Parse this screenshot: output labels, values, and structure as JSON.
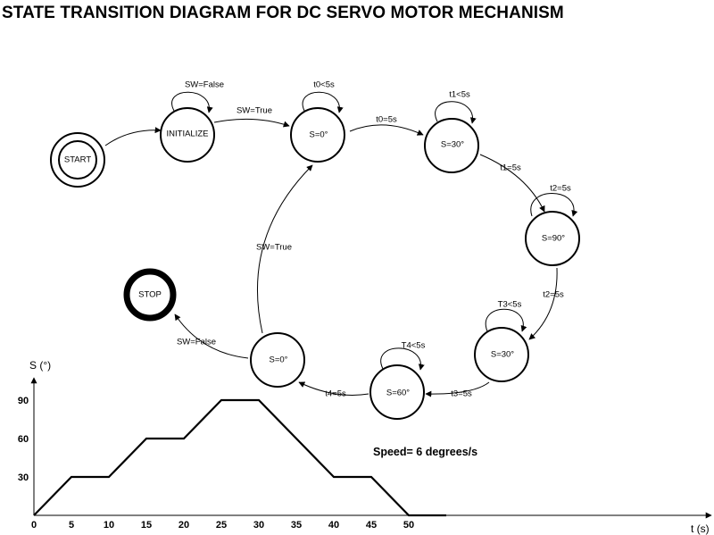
{
  "title": "STATE TRANSITION DIAGRAM FOR DC SERVO MOTOR MECHANISM",
  "states": {
    "start": "START",
    "initialize": "INITIALIZE",
    "s0_top": "S=0°",
    "s30_top": "S=30°",
    "s90": "S=90°",
    "s30_bottom": "S=30°",
    "s60": "S=60°",
    "s0_bottom": "S=0°",
    "stop": "STOP"
  },
  "transitions": {
    "init_self": "SW=False",
    "init_to_s0": "SW=True",
    "s0_self": "t0<5s",
    "s0_to_s30": "t0=5s",
    "s30_self": "t1<5s",
    "s30_to_s90": "t1=5s",
    "s90_self": "t2=5s",
    "s90_to_s30b": "t2=5s",
    "s30b_self": "T3<5s",
    "s30b_to_s60": "t3=5s",
    "s60_self": "T4<5s",
    "s60_to_s0b": "t4=5s",
    "s0b_to_stop": "SW=False",
    "s0b_to_s0": "SW=True"
  },
  "speed_text": "Speed= 6 degrees/s",
  "chart_data": {
    "type": "line",
    "xlabel": "t (s)",
    "ylabel": "S (°)",
    "x_ticks": [
      0,
      5,
      10,
      15,
      20,
      25,
      30,
      35,
      40,
      45,
      50
    ],
    "y_ticks": [
      30,
      60,
      90
    ],
    "xlim": [
      0,
      55
    ],
    "ylim": [
      0,
      100
    ],
    "series": [
      {
        "x": [
          0,
          5,
          10,
          15,
          20,
          25,
          30,
          40,
          45,
          50,
          55
        ],
        "y": [
          0,
          30,
          30,
          60,
          60,
          90,
          90,
          30,
          30,
          0,
          0
        ]
      }
    ]
  }
}
